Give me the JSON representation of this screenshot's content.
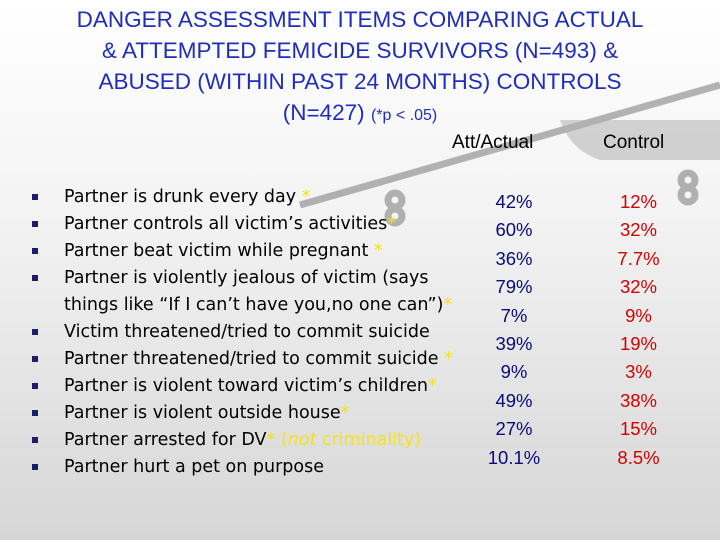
{
  "title": {
    "line1": "DANGER  ASSESSMENT ITEMS COMPARING ACTUAL",
    "line2": "& ATTEMPTED FEMICIDE SURVIVORS (N=493) &",
    "line3": "ABUSED (WITHIN PAST 24 MONTHS) CONTROLS",
    "line4": "(N=427)",
    "note": "(*p < .05)"
  },
  "columns": {
    "att_actual": "Att/Actual",
    "control": "Control"
  },
  "items": [
    {
      "text": "Partner is drunk every day ",
      "star": "*"
    },
    {
      "text": "Partner controls all victim’s activities",
      "star": "*"
    },
    {
      "text": "Partner beat victim while pregnant ",
      "star": "*"
    },
    {
      "text": "Partner is violently jealous of victim (says",
      "cont": "things like “If I can’t have you,no one can”)",
      "star": "*"
    },
    {
      "text": "Victim threatened/tried to commit suicide",
      "star": ""
    },
    {
      "text": "Partner threatened/tried to commit suicide ",
      "star": "*"
    },
    {
      "text": "Partner is violent toward victim’s children",
      "star": "*"
    },
    {
      "text": "Partner is violent outside house",
      "star": "*"
    },
    {
      "text": "Partner arrested for DV",
      "star": "* (",
      "note_em": "not",
      "note_rest": " criminality)"
    },
    {
      "text": "Partner hurt a pet on purpose",
      "star": ""
    }
  ],
  "att_values": [
    "42%",
    "60%",
    "36%",
    "79%",
    "7%",
    "39%",
    "9%",
    "49%",
    "27%",
    "10.1%"
  ],
  "control_values": [
    "12%",
    "32%",
    "7.7%",
    "32%",
    "9%",
    "19%",
    "3%",
    "38%",
    "15%",
    "8.5%"
  ],
  "colors": {
    "title": "#1f2dbd",
    "star": "#f5e21a",
    "att_values": "#0a0a7a",
    "control_values": "#d40000",
    "bullet": "#1c1c6a"
  },
  "icons": {
    "background": "scale-of-justice-icon",
    "bullet": "square-bullet-icon"
  }
}
